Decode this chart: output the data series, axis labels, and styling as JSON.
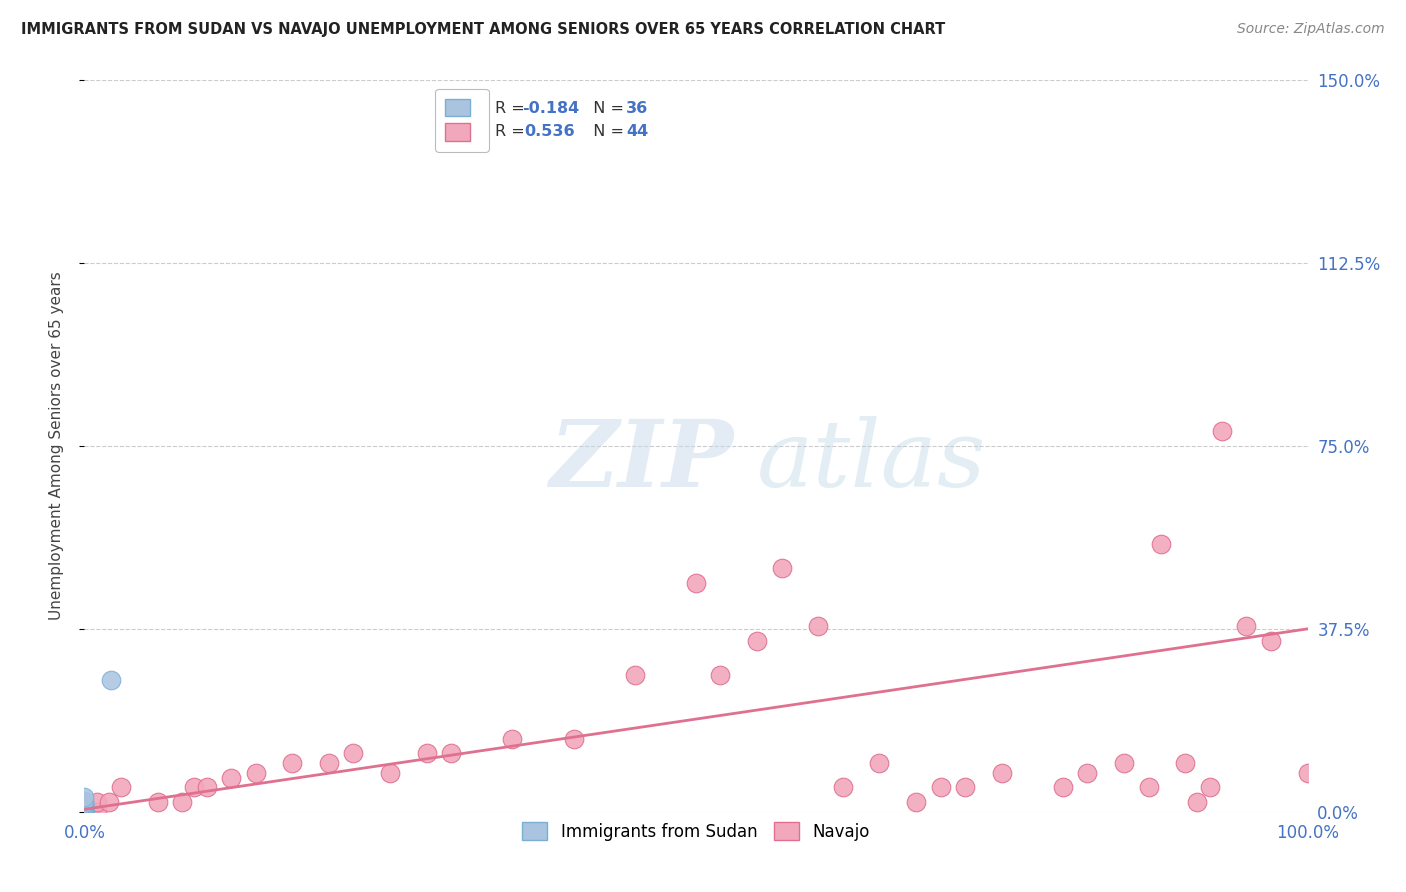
{
  "title": "IMMIGRANTS FROM SUDAN VS NAVAJO UNEMPLOYMENT AMONG SENIORS OVER 65 YEARS CORRELATION CHART",
  "source": "Source: ZipAtlas.com",
  "ylabel": "Unemployment Among Seniors over 65 years",
  "xlim": [
    0.0,
    1.0
  ],
  "ylim": [
    0.0,
    1.5
  ],
  "x_tick_positions": [
    0.0,
    1.0
  ],
  "x_tick_labels": [
    "0.0%",
    "100.0%"
  ],
  "y_ticks_right": [
    0.0,
    0.375,
    0.75,
    1.125,
    1.5
  ],
  "y_tick_labels_right": [
    "0.0%",
    "37.5%",
    "75.0%",
    "112.5%",
    "150.0%"
  ],
  "legend_label1": "Immigrants from Sudan",
  "legend_label2": "Navajo",
  "color_blue": "#aac4e0",
  "color_pink": "#f2a8bc",
  "color_blue_edge": "#7aafd4",
  "color_pink_edge": "#e07090",
  "line_color": "#e07090",
  "marker_size": 180,
  "sudan_x": [
    0.0,
    0.0,
    0.0,
    0.0,
    0.0,
    0.0,
    0.0,
    0.0,
    0.0,
    0.0,
    0.0,
    0.0,
    0.0,
    0.0,
    0.0,
    0.0,
    0.0,
    0.0,
    0.0,
    0.0,
    0.0,
    0.0,
    0.0,
    0.0,
    0.0,
    0.0,
    0.0,
    0.0,
    0.0,
    0.0,
    0.0,
    0.0,
    0.0,
    0.0,
    0.0,
    0.022
  ],
  "sudan_y": [
    0.0,
    0.0,
    0.0,
    0.0,
    0.0,
    0.0,
    0.0,
    0.0,
    0.0,
    0.0,
    0.0,
    0.0,
    0.0,
    0.0,
    0.0,
    0.0,
    0.0,
    0.0,
    0.0,
    0.0,
    0.002,
    0.003,
    0.004,
    0.005,
    0.005,
    0.006,
    0.007,
    0.008,
    0.009,
    0.01,
    0.012,
    0.015,
    0.018,
    0.022,
    0.03,
    0.27
  ],
  "navajo_x": [
    0.0,
    0.0,
    0.01,
    0.01,
    0.02,
    0.03,
    0.06,
    0.08,
    0.09,
    0.1,
    0.12,
    0.14,
    0.17,
    0.2,
    0.22,
    0.25,
    0.28,
    0.3,
    0.35,
    0.4,
    0.45,
    0.5,
    0.52,
    0.55,
    0.57,
    0.6,
    0.62,
    0.65,
    0.68,
    0.7,
    0.72,
    0.75,
    0.8,
    0.82,
    0.85,
    0.87,
    0.88,
    0.9,
    0.91,
    0.92,
    0.93,
    0.95,
    0.97,
    1.0
  ],
  "navajo_y": [
    0.0,
    0.02,
    0.0,
    0.02,
    0.02,
    0.05,
    0.02,
    0.02,
    0.05,
    0.05,
    0.07,
    0.08,
    0.1,
    0.1,
    0.12,
    0.08,
    0.12,
    0.12,
    0.15,
    0.15,
    0.28,
    0.47,
    0.28,
    0.35,
    0.5,
    0.38,
    0.05,
    0.1,
    0.02,
    0.05,
    0.05,
    0.08,
    0.05,
    0.08,
    0.1,
    0.05,
    0.55,
    0.1,
    0.02,
    0.05,
    0.78,
    0.38,
    0.35,
    0.08
  ],
  "navajo_line_x": [
    0.0,
    1.0
  ],
  "navajo_line_y": [
    0.005,
    0.375
  ],
  "watermark_zip": "ZIP",
  "watermark_atlas": "atlas",
  "background_color": "#ffffff",
  "grid_color": "#cccccc",
  "grid_linestyle": "--",
  "title_color": "#222222",
  "source_color": "#888888",
  "label_color": "#4472c4",
  "r1_text": "R = ",
  "r1_val": "-0.184",
  "n1_text": "  N = ",
  "n1_val": "36",
  "r2_text": "R =  ",
  "r2_val": "0.536",
  "n2_text": "  N = ",
  "n2_val": "44"
}
